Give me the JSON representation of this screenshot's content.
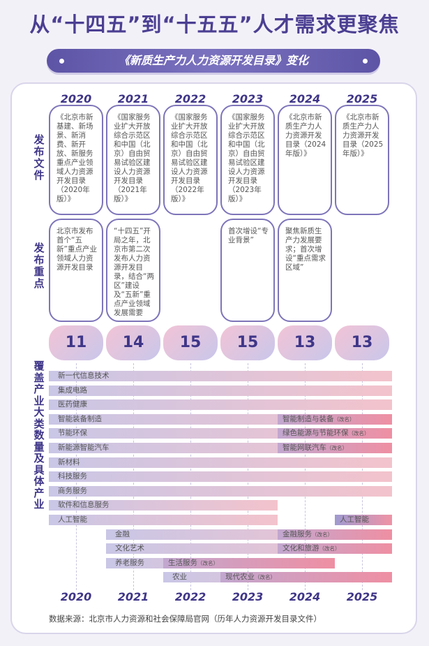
{
  "title": "从“十四五”到“十五五”人才需求更聚焦",
  "subtitle": "《新质生产力人力资源开发目录》变化",
  "years": [
    "2020",
    "2021",
    "2022",
    "2023",
    "2024",
    "2025"
  ],
  "row_labels": {
    "documents": "发布文件",
    "focus": "发布重点",
    "industries": "覆盖产业大类数量及具体产业"
  },
  "documents": [
    "《北京市新基建、新场景、新消费、新开放、新服务重点产业领域人力资源开发目录（2020年版）》",
    "《国家服务业扩大开放综合示范区和中国（北京）自由贸易试验区建设人力资源开发目录（2021年版）》",
    "《国家服务业扩大开放综合示范区和中国（北京）自由贸易试验区建设人力资源开发目录（2022年版）》",
    "《国家服务业扩大开放综合示范区和中国（北京）自由贸易试验区建设人力资源开发目录（2023年版）》",
    "《北京市新质生产力人力资源开发目录（2024年版）》",
    "《北京市新质生产力人力资源开发目录（2025年版）》"
  ],
  "focus": [
    "北京市发布首个“五新”重点产业领域人力资源开发目录",
    "“十四五”开局之年，北京市第二次发布人力资源开发目录，结合“两区”建设及“五新”重点产业领域发展需要",
    "",
    "首次增设“专业背景”",
    "聚焦新质生产力发展要求；首次增设“重点需求区域”",
    ""
  ],
  "industry_counts": [
    "11",
    "14",
    "15",
    "15",
    "13",
    "13"
  ],
  "industries": [
    {
      "label": "新一代信息技术",
      "start": "2020",
      "end": "2025"
    },
    {
      "label": "集成电路",
      "start": "2020",
      "end": "2025"
    },
    {
      "label": "医药健康",
      "start": "2020",
      "end": "2025"
    },
    {
      "label": "智能装备制造",
      "start": "2020",
      "end": "2025",
      "renamed": {
        "label": "智能制造与装备",
        "note": "（改名）",
        "start": "2024"
      }
    },
    {
      "label": "节能环保",
      "start": "2020",
      "end": "2025",
      "renamed": {
        "label": "绿色能源与节能环保",
        "note": "（改名）",
        "start": "2024"
      }
    },
    {
      "label": "新能源智能汽车",
      "start": "2020",
      "end": "2025",
      "renamed": {
        "label": "智能网联汽车",
        "note": "（改名）",
        "start": "2024"
      }
    },
    {
      "label": "新材料",
      "start": "2020",
      "end": "2025"
    },
    {
      "label": "科技服务",
      "start": "2020",
      "end": "2025"
    },
    {
      "label": "商务服务",
      "start": "2020",
      "end": "2025"
    },
    {
      "label": "软件和信息服务",
      "start": "2020",
      "end": "2023"
    },
    {
      "label": "人工智能",
      "start": "2020",
      "end": "2023",
      "readded": {
        "label": "人工智能",
        "start": "2025",
        "end": "2025"
      }
    },
    {
      "label": "金融",
      "start": "2021",
      "end": "2025",
      "renamed": {
        "label": "金融服务",
        "note": "（改名）",
        "start": "2024"
      }
    },
    {
      "label": "文化艺术",
      "start": "2021",
      "end": "2025",
      "renamed": {
        "label": "文化和旅游",
        "note": "（改名）",
        "start": "2024"
      }
    },
    {
      "label": "养老服务",
      "start": "2021",
      "end": "2024",
      "renamed": {
        "label": "生活服务",
        "note": "（改名）",
        "start": "2022"
      }
    },
    {
      "label": "农业",
      "start": "2022",
      "end": "2025",
      "renamed": {
        "label": "现代农业",
        "note": "（改名）",
        "start": "2023"
      }
    }
  ],
  "source": "数据来源：北京市人力资源和社会保障局官网（历年人力资源开发目录文件）"
}
